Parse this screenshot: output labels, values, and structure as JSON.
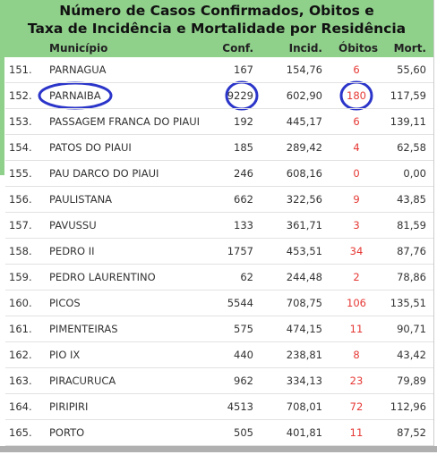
{
  "header": {
    "title_lines": [
      "Número de Casos Confirmados, Obitos e",
      "Taxa de Incidência e Mortalidade por Residência"
    ],
    "columns": [
      "Município",
      "Conf.",
      "Incid.",
      "Óbitos",
      "Mort."
    ]
  },
  "table": {
    "rows": [
      [
        "151.",
        "PARNAGUA",
        "167",
        "154,76",
        "6",
        "55,60"
      ],
      [
        "152.",
        "PARNAIBA",
        "9229",
        "602,90",
        "180",
        "117,59"
      ],
      [
        "153.",
        "PASSAGEM FRANCA DO PIAUI",
        "192",
        "445,17",
        "6",
        "139,11"
      ],
      [
        "154.",
        "PATOS DO PIAUI",
        "185",
        "289,42",
        "4",
        "62,58"
      ],
      [
        "155.",
        "PAU DARCO DO PIAUI",
        "246",
        "608,16",
        "0",
        "0,00"
      ],
      [
        "156.",
        "PAULISTANA",
        "662",
        "322,56",
        "9",
        "43,85"
      ],
      [
        "157.",
        "PAVUSSU",
        "133",
        "361,71",
        "3",
        "81,59"
      ],
      [
        "158.",
        "PEDRO II",
        "1757",
        "453,51",
        "34",
        "87,76"
      ],
      [
        "159.",
        "PEDRO LAURENTINO",
        "62",
        "244,48",
        "2",
        "78,86"
      ],
      [
        "160.",
        "PICOS",
        "5544",
        "708,75",
        "106",
        "135,51"
      ],
      [
        "161.",
        "PIMENTEIRAS",
        "575",
        "474,15",
        "11",
        "90,71"
      ],
      [
        "162.",
        "PIO IX",
        "440",
        "238,81",
        "8",
        "43,42"
      ],
      [
        "163.",
        "PIRACURUCA",
        "962",
        "334,13",
        "23",
        "79,89"
      ],
      [
        "164.",
        "PIRIPIRI",
        "4513",
        "708,01",
        "72",
        "112,96"
      ],
      [
        "165.",
        "PORTO",
        "505",
        "401,81",
        "11",
        "87,52"
      ]
    ]
  }
}
